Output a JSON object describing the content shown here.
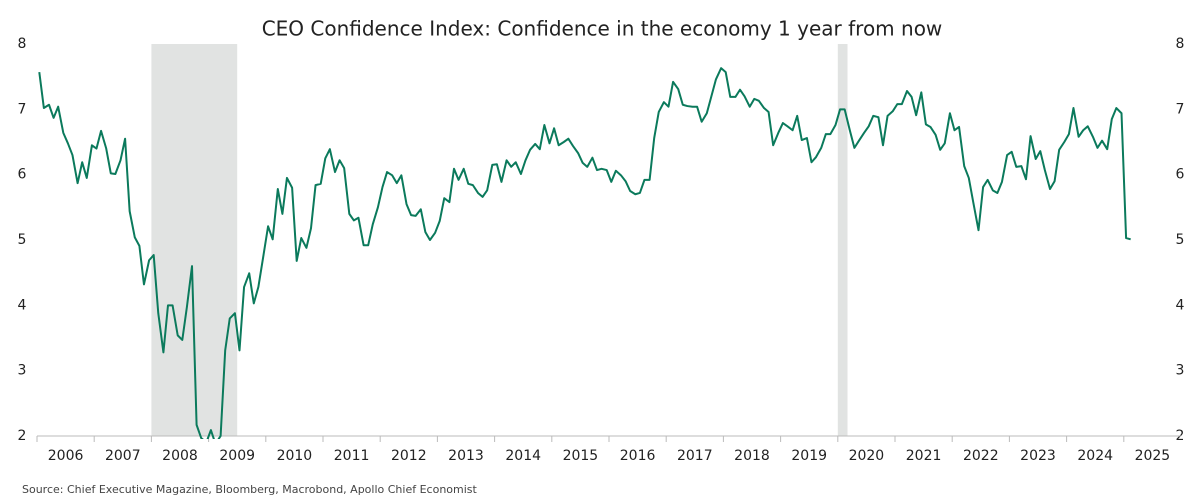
{
  "chart_data": {
    "type": "line",
    "title": "CEO Confidence Index: Confidence in the economy 1 year from now",
    "source": "Source: Chief Executive Magazine, Bloomberg, Macrobond, Apollo Chief Economist",
    "x": [
      2006.04,
      2006.12,
      2006.21,
      2006.29,
      2006.37,
      2006.46,
      2006.54,
      2006.62,
      2006.71,
      2006.79,
      2006.87,
      2006.96,
      2007.04,
      2007.12,
      2007.21,
      2007.29,
      2007.37,
      2007.46,
      2007.54,
      2007.62,
      2007.71,
      2007.79,
      2007.87,
      2007.96,
      2008.04,
      2008.12,
      2008.21,
      2008.29,
      2008.37,
      2008.46,
      2008.54,
      2008.62,
      2008.71,
      2008.79,
      2008.87,
      2008.96,
      2009.04,
      2009.12,
      2009.21,
      2009.29,
      2009.37,
      2009.46,
      2009.54,
      2009.62,
      2009.71,
      2009.79,
      2009.87,
      2009.96,
      2010.04,
      2010.12,
      2010.21,
      2010.29,
      2010.37,
      2010.46,
      2010.54,
      2010.62,
      2010.71,
      2010.79,
      2010.87,
      2010.96,
      2011.04,
      2011.12,
      2011.21,
      2011.29,
      2011.37,
      2011.46,
      2011.54,
      2011.62,
      2011.71,
      2011.79,
      2011.87,
      2011.96,
      2012.04,
      2012.12,
      2012.21,
      2012.29,
      2012.37,
      2012.46,
      2012.54,
      2012.62,
      2012.71,
      2012.79,
      2012.87,
      2012.96,
      2013.04,
      2013.12,
      2013.21,
      2013.29,
      2013.37,
      2013.46,
      2013.54,
      2013.62,
      2013.71,
      2013.79,
      2013.87,
      2013.96,
      2014.04,
      2014.12,
      2014.21,
      2014.29,
      2014.37,
      2014.46,
      2014.54,
      2014.62,
      2014.71,
      2014.79,
      2014.87,
      2014.96,
      2015.04,
      2015.12,
      2015.21,
      2015.29,
      2015.37,
      2015.46,
      2015.54,
      2015.62,
      2015.71,
      2015.79,
      2015.87,
      2015.96,
      2016.04,
      2016.12,
      2016.21,
      2016.29,
      2016.37,
      2016.46,
      2016.54,
      2016.62,
      2016.71,
      2016.79,
      2016.87,
      2016.96,
      2017.04,
      2017.12,
      2017.21,
      2017.29,
      2017.37,
      2017.46,
      2017.54,
      2017.62,
      2017.71,
      2017.79,
      2017.87,
      2017.96,
      2018.04,
      2018.12,
      2018.21,
      2018.29,
      2018.37,
      2018.46,
      2018.54,
      2018.62,
      2018.71,
      2018.79,
      2018.87,
      2018.96,
      2019.04,
      2019.12,
      2019.21,
      2019.29,
      2019.37,
      2019.46,
      2019.54,
      2019.62,
      2019.71,
      2019.79,
      2019.87,
      2019.96,
      2020.04,
      2020.12,
      2020.21,
      2020.29,
      2020.37,
      2020.46,
      2020.54,
      2020.62,
      2020.71,
      2020.79,
      2020.87,
      2020.96,
      2021.04,
      2021.12,
      2021.21,
      2021.29,
      2021.37,
      2021.46,
      2021.54,
      2021.62,
      2021.71,
      2021.79,
      2021.87,
      2021.96,
      2022.04,
      2022.12,
      2022.21,
      2022.29,
      2022.37,
      2022.46,
      2022.54,
      2022.62,
      2022.71,
      2022.79,
      2022.87,
      2022.96,
      2023.04,
      2023.12,
      2023.21,
      2023.29,
      2023.37,
      2023.46,
      2023.54,
      2023.62,
      2023.71,
      2023.79,
      2023.87,
      2023.96,
      2024.04,
      2024.12,
      2024.21,
      2024.29,
      2024.37,
      2024.46,
      2024.54,
      2024.62,
      2024.71,
      2024.79,
      2024.87,
      2024.96,
      2025.04,
      2025.12
    ],
    "series": [
      {
        "color": "#0b7a5c",
        "values": [
          7.57,
          7.02,
          7.07,
          6.87,
          7.04,
          6.64,
          6.48,
          6.3,
          5.87,
          6.19,
          5.95,
          6.45,
          6.4,
          6.67,
          6.4,
          6.02,
          6.01,
          6.22,
          6.55,
          5.44,
          5.04,
          4.91,
          4.32,
          4.69,
          4.77,
          3.88,
          3.28,
          4.0,
          4.0,
          3.54,
          3.47,
          3.97,
          4.6,
          2.17,
          1.97,
          1.9,
          2.09,
          1.88,
          2.0,
          3.31,
          3.8,
          3.88,
          3.31,
          4.28,
          4.49,
          4.03,
          4.28,
          4.77,
          5.21,
          5.01,
          5.78,
          5.4,
          5.95,
          5.8,
          4.68,
          5.03,
          4.88,
          5.18,
          5.84,
          5.86,
          6.25,
          6.39,
          6.04,
          6.22,
          6.1,
          5.4,
          5.3,
          5.34,
          4.92,
          4.92,
          5.24,
          5.5,
          5.81,
          6.04,
          5.99,
          5.87,
          5.99,
          5.55,
          5.38,
          5.37,
          5.47,
          5.12,
          5.0,
          5.11,
          5.29,
          5.64,
          5.58,
          6.09,
          5.92,
          6.09,
          5.86,
          5.84,
          5.72,
          5.66,
          5.76,
          6.15,
          6.16,
          5.89,
          6.22,
          6.12,
          6.19,
          6.01,
          6.22,
          6.38,
          6.47,
          6.39,
          6.76,
          6.48,
          6.71,
          6.45,
          6.5,
          6.55,
          6.44,
          6.33,
          6.18,
          6.12,
          6.26,
          6.07,
          6.09,
          6.07,
          5.89,
          6.06,
          5.99,
          5.9,
          5.75,
          5.7,
          5.72,
          5.92,
          5.92,
          6.56,
          6.96,
          7.11,
          7.04,
          7.42,
          7.31,
          7.07,
          7.05,
          7.04,
          7.04,
          6.81,
          6.94,
          7.2,
          7.46,
          7.63,
          7.57,
          7.19,
          7.19,
          7.3,
          7.2,
          7.04,
          7.16,
          7.13,
          7.02,
          6.96,
          6.45,
          6.64,
          6.79,
          6.74,
          6.68,
          6.9,
          6.53,
          6.56,
          6.19,
          6.27,
          6.41,
          6.62,
          6.62,
          6.76,
          7.0,
          7.0,
          6.68,
          6.41,
          6.52,
          6.64,
          6.74,
          6.9,
          6.88,
          6.45,
          6.9,
          6.97,
          7.08,
          7.08,
          7.28,
          7.19,
          6.91,
          7.26,
          6.77,
          6.73,
          6.61,
          6.38,
          6.48,
          6.94,
          6.68,
          6.73,
          6.13,
          5.95,
          5.57,
          5.15,
          5.81,
          5.92,
          5.76,
          5.72,
          5.89,
          6.3,
          6.35,
          6.12,
          6.13,
          5.93,
          6.59,
          6.24,
          6.36,
          6.07,
          5.78,
          5.9,
          6.38,
          6.5,
          6.62,
          7.02,
          6.58,
          6.68,
          6.74,
          6.58,
          6.41,
          6.52,
          6.39,
          6.85,
          7.02,
          6.94,
          5.03,
          5.01
        ]
      }
    ],
    "recessions": [
      {
        "start": 2008.0,
        "end": 2009.5,
        "color": "#e1e3e2"
      },
      {
        "start": 2020.0,
        "end": 2020.17,
        "color": "#e1e3e2"
      }
    ],
    "xlim": [
      2006,
      2026
    ],
    "xticks": [
      2006,
      2007,
      2008,
      2009,
      2010,
      2011,
      2012,
      2013,
      2014,
      2015,
      2016,
      2017,
      2018,
      2019,
      2020,
      2021,
      2022,
      2023,
      2024,
      2025
    ],
    "ylim": [
      2,
      8
    ],
    "yticks": [
      2,
      3,
      4,
      5,
      6,
      7,
      8
    ],
    "grid": false
  }
}
